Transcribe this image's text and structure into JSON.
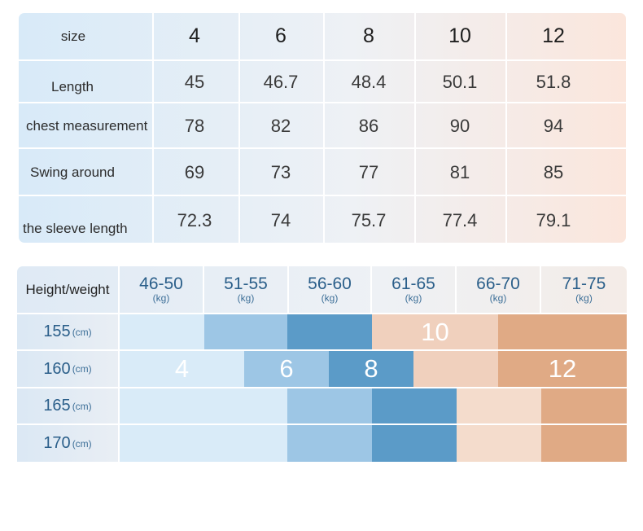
{
  "size_table": {
    "header": {
      "label": "size",
      "values": [
        "4",
        "6",
        "8",
        "10",
        "12"
      ]
    },
    "rows": [
      {
        "label": "Length",
        "values": [
          "45",
          "46.7",
          "48.4",
          "50.1",
          "51.8"
        ]
      },
      {
        "label": "chest measurement",
        "values": [
          "78",
          "82",
          "86",
          "90",
          "94"
        ]
      },
      {
        "label": "Swing around",
        "values": [
          "69",
          "73",
          "77",
          "81",
          "85"
        ]
      },
      {
        "label": "the sleeve length",
        "values": [
          "72.3",
          "74",
          "75.7",
          "77.4",
          "79.1"
        ]
      }
    ]
  },
  "height_weight": {
    "header_label": "Height/weight",
    "weight_unit": "(kg)",
    "height_unit": "(cm)",
    "weights": [
      "46-50",
      "51-55",
      "56-60",
      "61-65",
      "66-70",
      "71-75"
    ],
    "heights": [
      "155",
      "160",
      "165",
      "170"
    ],
    "size_labels": {
      "s4": "4",
      "s6": "6",
      "s8": "8",
      "s10": "10",
      "s12": "12"
    }
  },
  "colors": {
    "size_4": "#d9ebf8",
    "size_6": "#9dc6e5",
    "size_8": "#5b9bc8",
    "size_10": "#f0d0bd",
    "size_12": "#e0aa85",
    "size_10_light": "#f4dccc"
  }
}
